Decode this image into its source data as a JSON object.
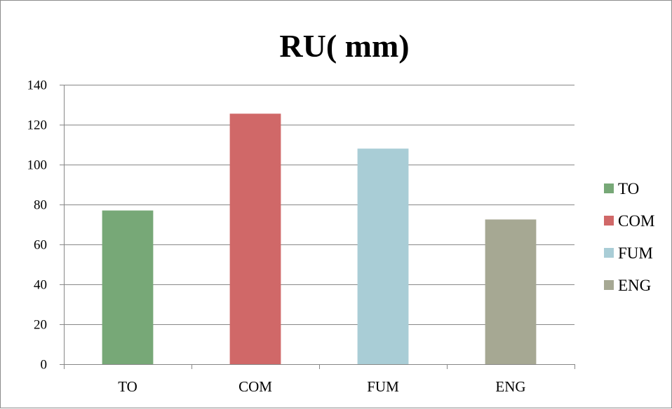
{
  "chart_data": {
    "type": "bar",
    "title": "RU( mm)",
    "xlabel": "",
    "ylabel": "",
    "categories": [
      "TO",
      "COM",
      "FUM",
      "ENG"
    ],
    "values": [
      77,
      125.5,
      108,
      72.5
    ],
    "colors": [
      "#77a877",
      "#d06868",
      "#a9cdd6",
      "#a6a893"
    ],
    "ylim": [
      0,
      140
    ],
    "yticks": [
      0,
      20,
      40,
      60,
      80,
      100,
      120,
      140
    ],
    "ytick_labels": [
      "0",
      "20",
      "40",
      "60",
      "80",
      "100",
      "120",
      "140"
    ],
    "grid": true,
    "legend": {
      "placement": "right",
      "entries": [
        "TO",
        "COM",
        "FUM",
        "ENG"
      ]
    }
  }
}
